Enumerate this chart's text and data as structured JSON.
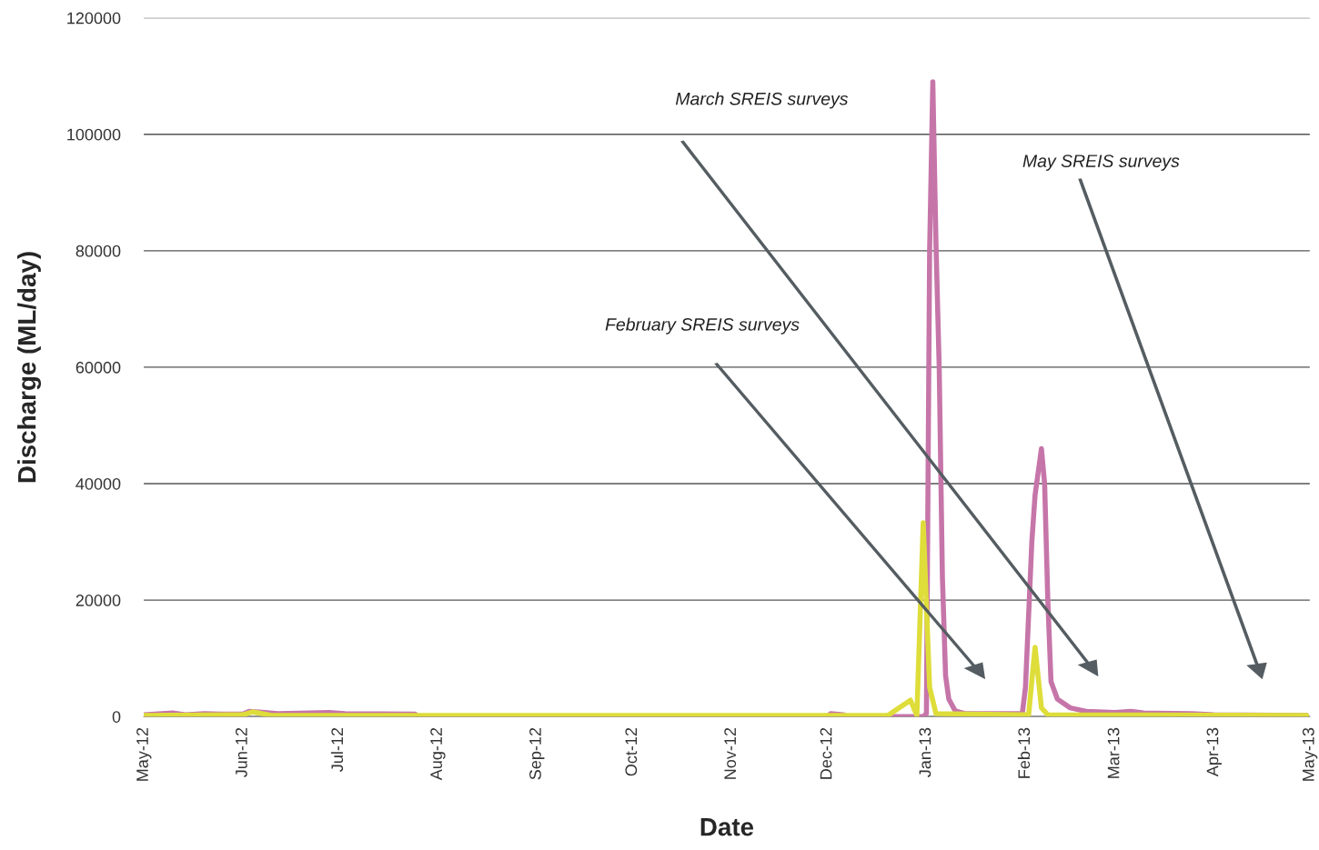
{
  "chart_data": {
    "type": "line",
    "xlabel": "Date",
    "ylabel": "Discharge (ML/day)",
    "xlim": [
      "2012-05-01",
      "2013-05-01"
    ],
    "xticks": [
      {
        "value": "2012-05-01",
        "label": "May-12"
      },
      {
        "value": "2012-06-01",
        "label": "Jun-12"
      },
      {
        "value": "2012-07-01",
        "label": "Jul-12"
      },
      {
        "value": "2012-08-01",
        "label": "Aug-12"
      },
      {
        "value": "2012-09-01",
        "label": "Sep-12"
      },
      {
        "value": "2012-10-01",
        "label": "Oct-12"
      },
      {
        "value": "2012-11-01",
        "label": "Nov-12"
      },
      {
        "value": "2012-12-01",
        "label": "Dec-12"
      },
      {
        "value": "2013-01-01",
        "label": "Jan-13"
      },
      {
        "value": "2013-02-01",
        "label": "Feb-13"
      },
      {
        "value": "2013-03-01",
        "label": "Mar-13"
      },
      {
        "value": "2013-04-01",
        "label": "Apr-13"
      },
      {
        "value": "2013-05-01",
        "label": "May-13"
      }
    ],
    "ylim": [
      0,
      120000
    ],
    "yticks": [
      0,
      20000,
      40000,
      60000,
      80000,
      100000,
      120000
    ],
    "grid": "y",
    "legend": false,
    "marker": "none",
    "line_style": "solid",
    "series": [
      {
        "color": "#c675a9",
        "x": [
          "2012-05-01",
          "2012-05-10",
          "2012-05-14",
          "2012-05-20",
          "2012-05-25",
          "2012-06-01",
          "2012-06-03",
          "2012-06-08",
          "2012-06-12",
          "2012-06-28",
          "2012-07-03",
          "2012-07-25",
          "2012-07-26",
          "2012-12-01",
          "2012-12-02",
          "2012-12-06",
          "2012-12-07",
          "2012-12-31",
          "2013-01-01",
          "2013-01-02",
          "2013-01-03",
          "2013-01-04",
          "2013-01-05",
          "2013-01-06",
          "2013-01-07",
          "2013-01-08",
          "2013-01-10",
          "2013-01-13",
          "2013-01-31",
          "2013-02-01",
          "2013-02-03",
          "2013-02-04",
          "2013-02-06",
          "2013-02-07",
          "2013-02-08",
          "2013-02-09",
          "2013-02-11",
          "2013-02-15",
          "2013-02-20",
          "2013-03-01",
          "2013-03-06",
          "2013-03-10",
          "2013-03-25",
          "2013-04-01",
          "2013-04-30"
        ],
        "values": [
          300,
          600,
          300,
          500,
          400,
          400,
          900,
          700,
          500,
          700,
          500,
          400,
          0,
          0,
          500,
          300,
          0,
          0,
          500,
          80000,
          109000,
          81000,
          60000,
          24000,
          7000,
          3000,
          1000,
          500,
          500,
          5000,
          30000,
          38000,
          46000,
          40000,
          20000,
          6000,
          3000,
          1500,
          900,
          700,
          900,
          600,
          500,
          300,
          200
        ]
      },
      {
        "color": "#dedd3a",
        "x": [
          "2012-05-01",
          "2012-06-01",
          "2012-06-04",
          "2012-06-10",
          "2012-12-20",
          "2012-12-27",
          "2012-12-29",
          "2012-12-31",
          "2013-01-02",
          "2013-01-04",
          "2013-01-31",
          "2013-02-02",
          "2013-02-04",
          "2013-02-06",
          "2013-02-08",
          "2013-04-30"
        ],
        "values": [
          200,
          300,
          800,
          200,
          200,
          2800,
          200,
          33300,
          5000,
          500,
          300,
          300,
          11900,
          1500,
          300,
          200
        ]
      }
    ],
    "annotations": [
      "February SREIS surveys",
      "March SREIS surveys",
      "May SREIS surveys"
    ]
  }
}
